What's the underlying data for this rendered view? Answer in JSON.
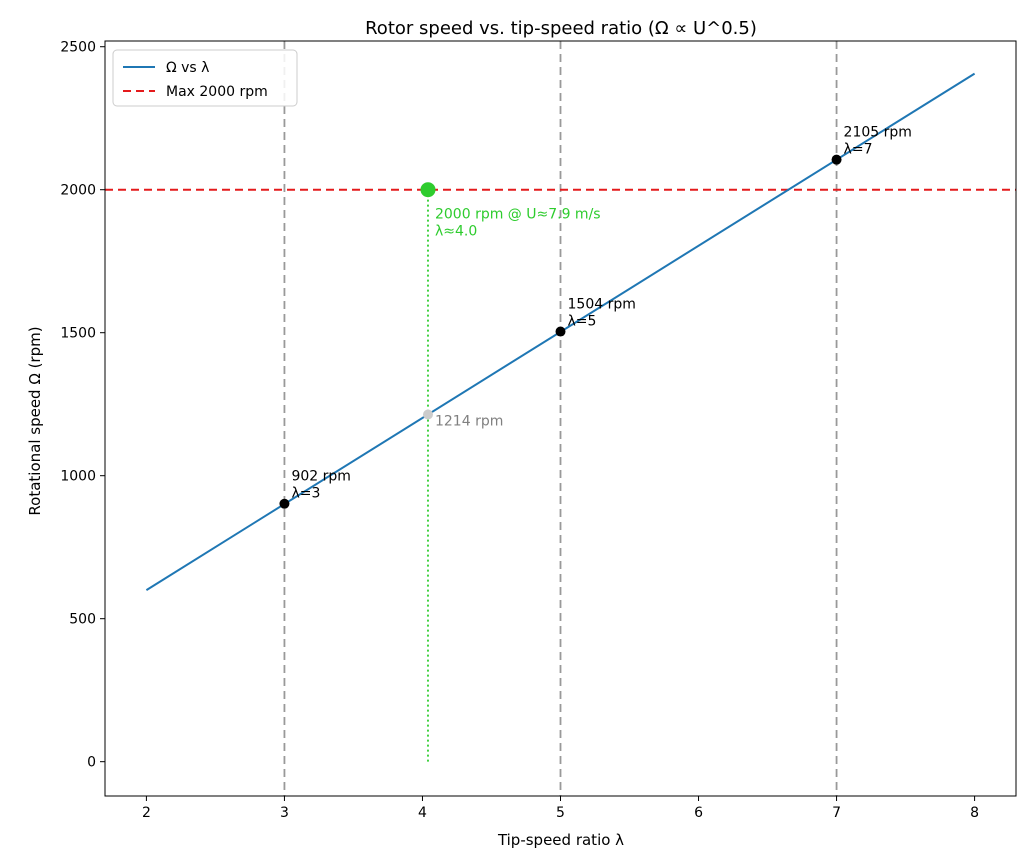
{
  "chart_data": {
    "type": "line",
    "title": "Rotor speed vs. tip-speed ratio (Ω ∝ U^0.5)",
    "xlabel": "Tip-speed ratio λ",
    "ylabel": "Rotational speed Ω (rpm)",
    "xlim": [
      1.7,
      8.3
    ],
    "ylim": [
      -120,
      2520
    ],
    "xticks": [
      "2",
      "3",
      "4",
      "5",
      "6",
      "7",
      "8"
    ],
    "xtick_values": [
      2,
      3,
      4,
      5,
      6,
      7,
      8
    ],
    "yticks": [
      "0",
      "500",
      "1000",
      "1500",
      "2000",
      "2500"
    ],
    "ytick_values": [
      0,
      500,
      1000,
      1500,
      2000,
      2500
    ],
    "grid": false,
    "legend_position": "top-left",
    "series": [
      {
        "name": "Ω vs λ",
        "color": "#1f77b4",
        "style": "solid",
        "x": [
          2,
          8
        ],
        "y": [
          600,
          2406
        ]
      }
    ],
    "reference_lines": {
      "max_line": {
        "name": "Max 2000 rpm",
        "y": 2000,
        "color": "#e41a1c",
        "style": "dashed"
      },
      "vertical": [
        {
          "x": 3,
          "color": "#999999",
          "style": "dashed"
        },
        {
          "x": 5,
          "color": "#999999",
          "style": "dashed"
        },
        {
          "x": 7,
          "color": "#999999",
          "style": "dashed"
        }
      ],
      "limit_drop": {
        "x": 4.04,
        "y_from": 0,
        "y_to": 2000,
        "color": "#2ecc2e",
        "style": "dotted"
      }
    },
    "points": [
      {
        "x": 3,
        "y": 902,
        "color": "#000000",
        "label": [
          "902 rpm",
          "λ=3"
        ]
      },
      {
        "x": 5,
        "y": 1504,
        "color": "#000000",
        "label": [
          "1504 rpm",
          "λ=5"
        ]
      },
      {
        "x": 7,
        "y": 2105,
        "color": "#000000",
        "label": [
          "2105 rpm",
          "λ=7"
        ]
      },
      {
        "x": 4.04,
        "y": 1214,
        "color": "#cccccc",
        "label": [
          "1214 rpm"
        ],
        "label_color": "#808080"
      },
      {
        "x": 4.04,
        "y": 2000,
        "color": "#2ecc2e",
        "label": [
          "2000 rpm @ U≈7.9 m/s",
          "λ≈4.0"
        ],
        "label_color": "#2ecc2e",
        "large": true
      }
    ],
    "legend": [
      {
        "name": "Ω vs λ",
        "color": "#1f77b4",
        "style": "solid"
      },
      {
        "name": "Max 2000 rpm",
        "color": "#e41a1c",
        "style": "dashed"
      }
    ]
  }
}
